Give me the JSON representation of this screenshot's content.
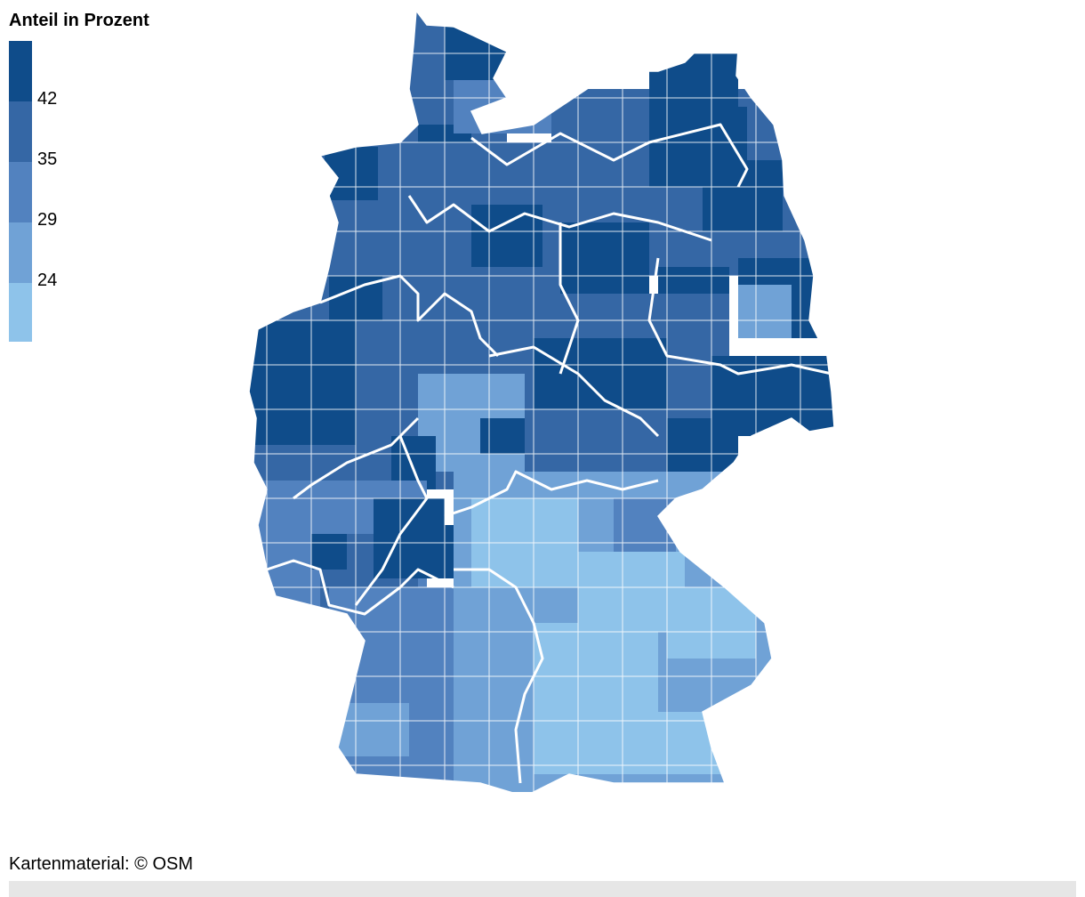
{
  "legend": {
    "title": "Anteil in Prozent",
    "ticks": [
      "42",
      "35",
      "29",
      "24"
    ],
    "colors": [
      "#0f4c8a",
      "#3567a5",
      "#5282bf",
      "#70a2d6",
      "#8ec3ea"
    ]
  },
  "map": {
    "region": "Deutschland",
    "unit": "Landkreise",
    "border_color": "#ffffff"
  },
  "credit": "Kartenmaterial: © OSM"
}
